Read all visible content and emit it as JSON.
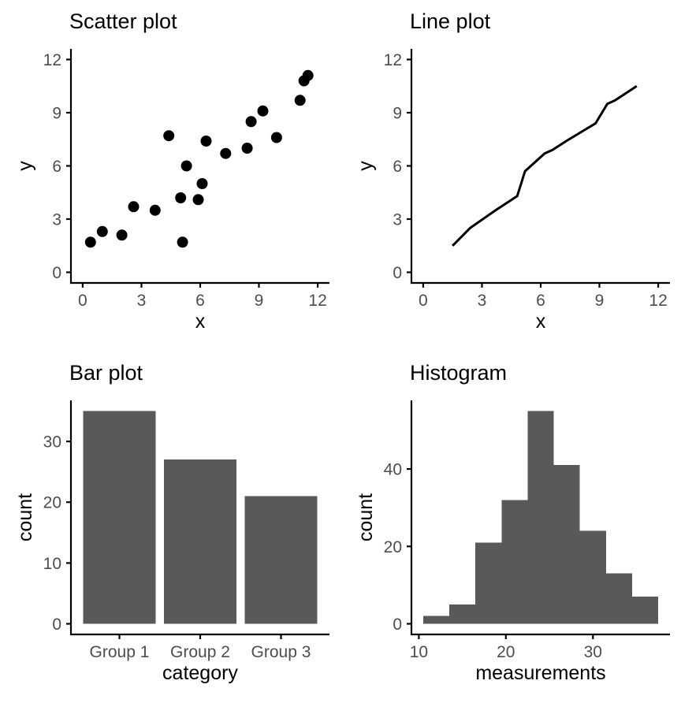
{
  "style": {
    "background": "#ffffff",
    "axis_color": "#000000",
    "tick_label_color": "#4d4d4d",
    "axis_title_color": "#000000",
    "title_color": "#000000",
    "point_color": "#000000",
    "line_color": "#000000",
    "bar_fill": "#595959",
    "grid": false,
    "legend": "none"
  },
  "chart_data": [
    {
      "type": "scatter",
      "title": "Scatter plot",
      "xlabel": "x",
      "ylabel": "y",
      "xlim": [
        0,
        12
      ],
      "ylim": [
        0,
        12
      ],
      "xticks": [
        0,
        3,
        6,
        9,
        12
      ],
      "yticks": [
        0,
        3,
        6,
        9,
        12
      ],
      "points": [
        [
          0.4,
          1.7
        ],
        [
          1.0,
          2.3
        ],
        [
          2.0,
          2.1
        ],
        [
          2.6,
          3.7
        ],
        [
          3.7,
          3.5
        ],
        [
          4.4,
          7.7
        ],
        [
          5.0,
          4.2
        ],
        [
          5.1,
          1.7
        ],
        [
          5.3,
          6.0
        ],
        [
          5.9,
          4.1
        ],
        [
          6.1,
          5.0
        ],
        [
          6.3,
          7.4
        ],
        [
          7.3,
          6.7
        ],
        [
          8.4,
          7.0
        ],
        [
          8.6,
          8.5
        ],
        [
          9.2,
          9.1
        ],
        [
          9.9,
          7.6
        ],
        [
          11.1,
          9.7
        ],
        [
          11.3,
          10.8
        ],
        [
          11.5,
          11.1
        ]
      ]
    },
    {
      "type": "line",
      "title": "Line plot",
      "xlabel": "x",
      "ylabel": "y",
      "xlim": [
        0,
        12
      ],
      "ylim": [
        0,
        12
      ],
      "xticks": [
        0,
        3,
        6,
        9,
        12
      ],
      "yticks": [
        0,
        3,
        6,
        9,
        12
      ],
      "points": [
        [
          1.5,
          1.5
        ],
        [
          2.4,
          2.5
        ],
        [
          3.7,
          3.5
        ],
        [
          4.8,
          4.3
        ],
        [
          5.2,
          5.7
        ],
        [
          6.2,
          6.7
        ],
        [
          6.6,
          6.9
        ],
        [
          7.3,
          7.4
        ],
        [
          8.8,
          8.4
        ],
        [
          9.4,
          9.5
        ],
        [
          9.8,
          9.7
        ],
        [
          10.9,
          10.5
        ]
      ]
    },
    {
      "type": "bar",
      "title": "Bar plot",
      "xlabel": "category",
      "ylabel": "count",
      "categories": [
        "Group 1",
        "Group 2",
        "Group 3"
      ],
      "values": [
        35,
        27,
        21
      ],
      "ylim": [
        0,
        35
      ],
      "yticks": [
        0,
        10,
        20,
        30
      ]
    },
    {
      "type": "histogram",
      "title": "Histogram",
      "xlabel": "measurements",
      "ylabel": "count",
      "bin_start": 10.5,
      "bin_width": 3,
      "counts": [
        2,
        5,
        21,
        32,
        55,
        41,
        24,
        13,
        7
      ],
      "ylim": [
        0,
        55
      ],
      "xticks": [
        10,
        20,
        30
      ],
      "yticks": [
        0,
        20,
        40
      ]
    }
  ]
}
